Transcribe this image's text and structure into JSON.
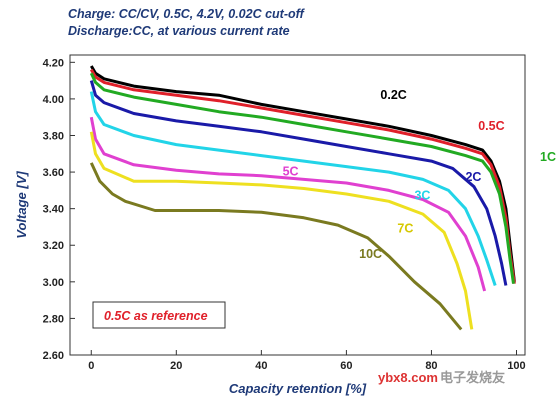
{
  "header": {
    "line1": "Charge: CC/CV, 0.5C, 4.2V, 0.02C cut-off",
    "line2": "Discharge:CC, at various current rate"
  },
  "watermark": {
    "site": "ybx8.com",
    "logo_text": "电子发烧友"
  },
  "chart_data": {
    "type": "line",
    "xlabel": "Capacity retention [%]",
    "ylabel": "Voltage [V]",
    "xlim": [
      -5,
      102
    ],
    "ylim": [
      2.6,
      4.24
    ],
    "xticks": [
      {
        "v": 0,
        "label": "0"
      },
      {
        "v": 20,
        "label": "20"
      },
      {
        "v": 40,
        "label": "40"
      },
      {
        "v": 60,
        "label": "60"
      },
      {
        "v": 80,
        "label": "80"
      },
      {
        "v": 100,
        "label": "100"
      }
    ],
    "yticks": [
      {
        "v": 2.6,
        "label": "2.60"
      },
      {
        "v": 2.8,
        "label": "2.80"
      },
      {
        "v": 3.0,
        "label": "3.00"
      },
      {
        "v": 3.2,
        "label": "3.20"
      },
      {
        "v": 3.4,
        "label": "3.40"
      },
      {
        "v": 3.6,
        "label": "3.60"
      },
      {
        "v": 3.8,
        "label": "3.80"
      },
      {
        "v": 4.0,
        "label": "4.00"
      },
      {
        "v": 4.2,
        "label": "4.20"
      }
    ],
    "grid": false,
    "annotation": "0.5C as reference",
    "series": [
      {
        "name": "0.2C",
        "color": "#000000",
        "label_at": [
          68,
          4.0
        ],
        "points": [
          [
            0,
            4.18
          ],
          [
            1,
            4.14
          ],
          [
            3,
            4.11
          ],
          [
            10,
            4.07
          ],
          [
            20,
            4.04
          ],
          [
            30,
            4.02
          ],
          [
            40,
            3.97
          ],
          [
            50,
            3.93
          ],
          [
            60,
            3.89
          ],
          [
            70,
            3.85
          ],
          [
            80,
            3.8
          ],
          [
            88,
            3.75
          ],
          [
            92,
            3.72
          ],
          [
            94,
            3.66
          ],
          [
            96,
            3.55
          ],
          [
            97.5,
            3.4
          ],
          [
            98.5,
            3.2
          ],
          [
            99.5,
            3.0
          ]
        ]
      },
      {
        "name": "0.5C",
        "color": "#e0202a",
        "label_at": [
          91,
          3.83
        ],
        "points": [
          [
            0,
            4.16
          ],
          [
            1,
            4.12
          ],
          [
            3,
            4.09
          ],
          [
            10,
            4.05
          ],
          [
            20,
            4.02
          ],
          [
            30,
            3.99
          ],
          [
            40,
            3.95
          ],
          [
            50,
            3.91
          ],
          [
            60,
            3.87
          ],
          [
            70,
            3.83
          ],
          [
            80,
            3.78
          ],
          [
            88,
            3.73
          ],
          [
            92,
            3.7
          ],
          [
            94,
            3.64
          ],
          [
            96,
            3.52
          ],
          [
            97.5,
            3.35
          ],
          [
            98.5,
            3.15
          ],
          [
            99.5,
            2.99
          ]
        ]
      },
      {
        "name": "1C",
        "color": "#22aa22",
        "label_at": [
          106,
          3.66
        ],
        "points": [
          [
            0,
            4.14
          ],
          [
            1,
            4.09
          ],
          [
            3,
            4.05
          ],
          [
            10,
            4.01
          ],
          [
            20,
            3.97
          ],
          [
            30,
            3.93
          ],
          [
            40,
            3.9
          ],
          [
            50,
            3.86
          ],
          [
            60,
            3.82
          ],
          [
            70,
            3.78
          ],
          [
            80,
            3.74
          ],
          [
            88,
            3.69
          ],
          [
            92,
            3.66
          ],
          [
            94,
            3.6
          ],
          [
            96,
            3.48
          ],
          [
            97.5,
            3.3
          ],
          [
            98.5,
            3.12
          ],
          [
            99.3,
            2.99
          ]
        ]
      },
      {
        "name": "2C",
        "color": "#1a1aa8",
        "label_at": [
          88,
          3.55
        ],
        "points": [
          [
            0,
            4.1
          ],
          [
            1,
            4.02
          ],
          [
            3,
            3.98
          ],
          [
            10,
            3.92
          ],
          [
            20,
            3.88
          ],
          [
            30,
            3.85
          ],
          [
            40,
            3.82
          ],
          [
            50,
            3.78
          ],
          [
            60,
            3.74
          ],
          [
            70,
            3.7
          ],
          [
            80,
            3.66
          ],
          [
            85,
            3.62
          ],
          [
            90,
            3.52
          ],
          [
            93,
            3.4
          ],
          [
            95,
            3.25
          ],
          [
            96.5,
            3.1
          ],
          [
            97.5,
            2.98
          ]
        ]
      },
      {
        "name": "3C",
        "color": "#22d4e8",
        "label_at": [
          76,
          3.45
        ],
        "points": [
          [
            0,
            4.04
          ],
          [
            1,
            3.93
          ],
          [
            3,
            3.86
          ],
          [
            10,
            3.8
          ],
          [
            20,
            3.75
          ],
          [
            30,
            3.72
          ],
          [
            40,
            3.69
          ],
          [
            50,
            3.66
          ],
          [
            60,
            3.63
          ],
          [
            70,
            3.6
          ],
          [
            78,
            3.56
          ],
          [
            84,
            3.5
          ],
          [
            88,
            3.4
          ],
          [
            91,
            3.25
          ],
          [
            93,
            3.12
          ],
          [
            95,
            2.98
          ]
        ]
      },
      {
        "name": "5C",
        "color": "#e040d0",
        "label_at": [
          45,
          3.58
        ],
        "points": [
          [
            0,
            3.9
          ],
          [
            1,
            3.78
          ],
          [
            3,
            3.7
          ],
          [
            10,
            3.64
          ],
          [
            20,
            3.61
          ],
          [
            30,
            3.59
          ],
          [
            40,
            3.58
          ],
          [
            50,
            3.56
          ],
          [
            60,
            3.54
          ],
          [
            70,
            3.5
          ],
          [
            78,
            3.45
          ],
          [
            84,
            3.38
          ],
          [
            88,
            3.25
          ],
          [
            91,
            3.08
          ],
          [
            92.5,
            2.95
          ]
        ]
      },
      {
        "name": "7C",
        "color": "#eee020",
        "label_at": [
          72,
          3.27
        ],
        "points": [
          [
            0,
            3.82
          ],
          [
            1,
            3.7
          ],
          [
            3,
            3.62
          ],
          [
            10,
            3.55
          ],
          [
            20,
            3.55
          ],
          [
            30,
            3.54
          ],
          [
            40,
            3.53
          ],
          [
            50,
            3.51
          ],
          [
            60,
            3.48
          ],
          [
            70,
            3.44
          ],
          [
            78,
            3.37
          ],
          [
            83,
            3.27
          ],
          [
            86,
            3.1
          ],
          [
            88,
            2.95
          ],
          [
            89.5,
            2.74
          ]
        ]
      },
      {
        "name": "10C",
        "color": "#7a7a20",
        "label_at": [
          63,
          3.13
        ],
        "points": [
          [
            0,
            3.65
          ],
          [
            2,
            3.55
          ],
          [
            5,
            3.48
          ],
          [
            8,
            3.44
          ],
          [
            15,
            3.39
          ],
          [
            30,
            3.39
          ],
          [
            40,
            3.38
          ],
          [
            50,
            3.35
          ],
          [
            58,
            3.31
          ],
          [
            65,
            3.24
          ],
          [
            70,
            3.14
          ],
          [
            76,
            3.0
          ],
          [
            82,
            2.88
          ],
          [
            87,
            2.74
          ]
        ]
      }
    ]
  }
}
